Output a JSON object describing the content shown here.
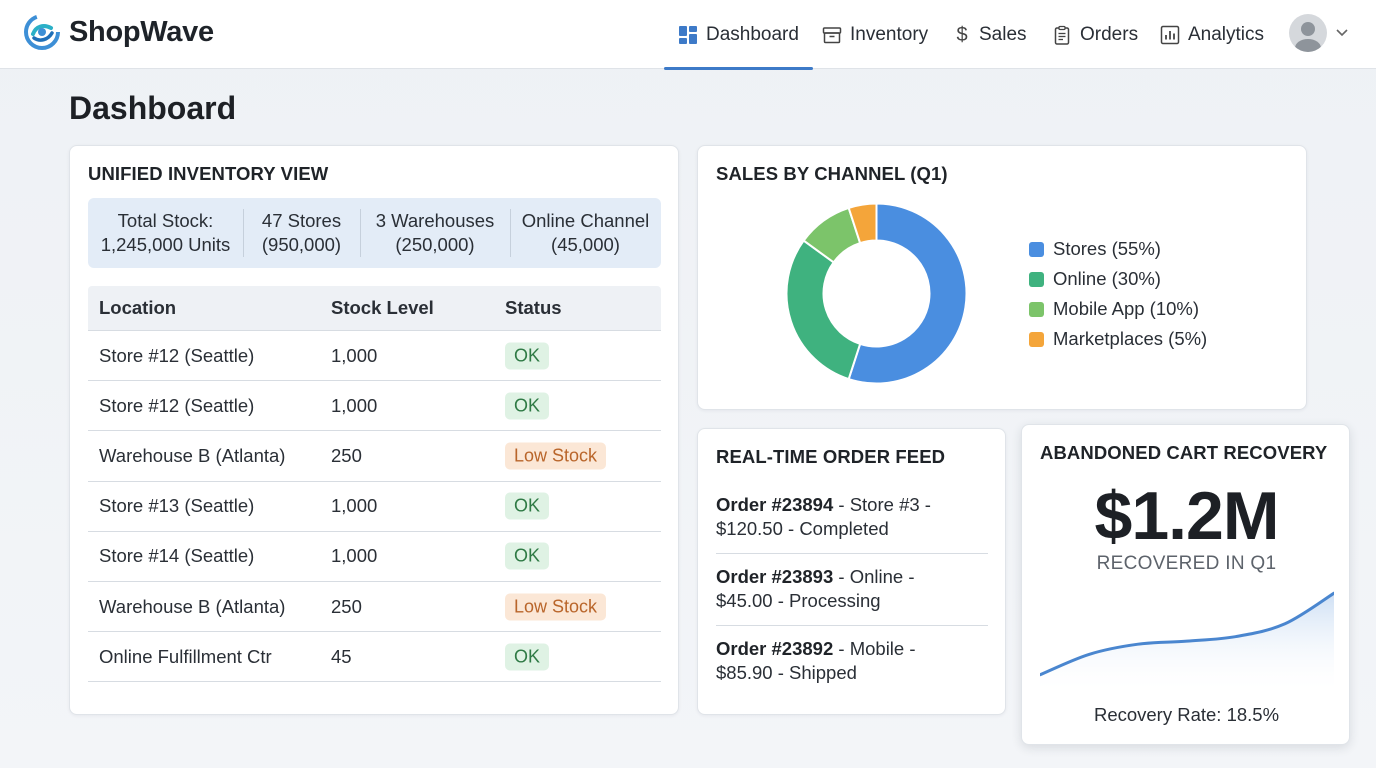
{
  "app": {
    "name": "ShopWave"
  },
  "nav": {
    "items": [
      {
        "label": "Dashboard",
        "icon": "dashboard-icon",
        "active": true
      },
      {
        "label": "Inventory",
        "icon": "archive-box-icon",
        "active": false
      },
      {
        "label": "Sales",
        "icon": "dollar-icon",
        "active": false
      },
      {
        "label": "Orders",
        "icon": "clipboard-icon",
        "active": false
      },
      {
        "label": "Analytics",
        "icon": "bar-chart-icon",
        "active": false
      }
    ]
  },
  "page": {
    "title": "Dashboard"
  },
  "inventory": {
    "title": "UNIFIED INVENTORY VIEW",
    "summary": [
      {
        "line1": "Total Stock:",
        "line2": "1,245,000 Units"
      },
      {
        "line1": "47 Stores",
        "line2": "(950,000)"
      },
      {
        "line1": "3 Warehouses",
        "line2": "(250,000)"
      },
      {
        "line1": "Online Channel",
        "line2": "(45,000)"
      }
    ],
    "columns": [
      "Location",
      "Stock Level",
      "Status"
    ],
    "rows": [
      {
        "location": "Store #12 (Seattle)",
        "stock": "1,000",
        "status": "OK"
      },
      {
        "location": "Store #12 (Seattle)",
        "stock": "1,000",
        "status": "OK"
      },
      {
        "location": "Warehouse B (Atlanta)",
        "stock": "250",
        "status": "Low Stock"
      },
      {
        "location": "Store #13 (Seattle)",
        "stock": "1,000",
        "status": "OK"
      },
      {
        "location": "Store #14 (Seattle)",
        "stock": "1,000",
        "status": "OK"
      },
      {
        "location": "Warehouse B (Atlanta)",
        "stock": "250",
        "status": "Low Stock"
      },
      {
        "location": "Online Fulfillment Ctr",
        "stock": "45",
        "status": "OK"
      }
    ],
    "status_colors": {
      "OK": "#2f7a45",
      "Low Stock": "#b9652a"
    }
  },
  "sales": {
    "title": "SALES BY CHANNEL (Q1)",
    "legend": [
      {
        "label": "Stores (55%)",
        "color": "#4a8ee0"
      },
      {
        "label": "Online (30%)",
        "color": "#3fb27f"
      },
      {
        "label": "Mobile App (10%)",
        "color": "#7cc46a"
      },
      {
        "label": "Marketplaces (5%)",
        "color": "#f4a53a"
      }
    ]
  },
  "chart_data": [
    {
      "type": "pie",
      "variant": "donut",
      "title": "SALES BY CHANNEL (Q1)",
      "categories": [
        "Stores",
        "Online",
        "Mobile App",
        "Marketplaces"
      ],
      "values": [
        55,
        30,
        10,
        5
      ],
      "colors": [
        "#4a8ee0",
        "#3fb27f",
        "#7cc46a",
        "#f4a53a"
      ],
      "legend_position": "right"
    },
    {
      "type": "area",
      "title": "",
      "x": [
        0,
        1,
        2,
        3,
        4,
        5,
        6
      ],
      "values": [
        2,
        6,
        8,
        8.6,
        9.5,
        12,
        18
      ],
      "color": "#4a86cf",
      "axes_visible": false
    }
  ],
  "orders": {
    "title": "REAL-TIME ORDER FEED",
    "items": [
      {
        "id": "Order #23894",
        "rest_line1": " - Store #3 -",
        "line2": "$120.50 - Completed"
      },
      {
        "id": "Order #23893",
        "rest_line1": " - Online -",
        "line2": "$45.00 - Processing"
      },
      {
        "id": "Order #23892",
        "rest_line1": " - Mobile -",
        "line2": "$85.90 - Shipped"
      }
    ]
  },
  "cart": {
    "title": "ABANDONED CART RECOVERY",
    "value": "$1.2M",
    "subtitle": "RECOVERED IN Q1",
    "rate": "Recovery Rate: 18.5%"
  }
}
